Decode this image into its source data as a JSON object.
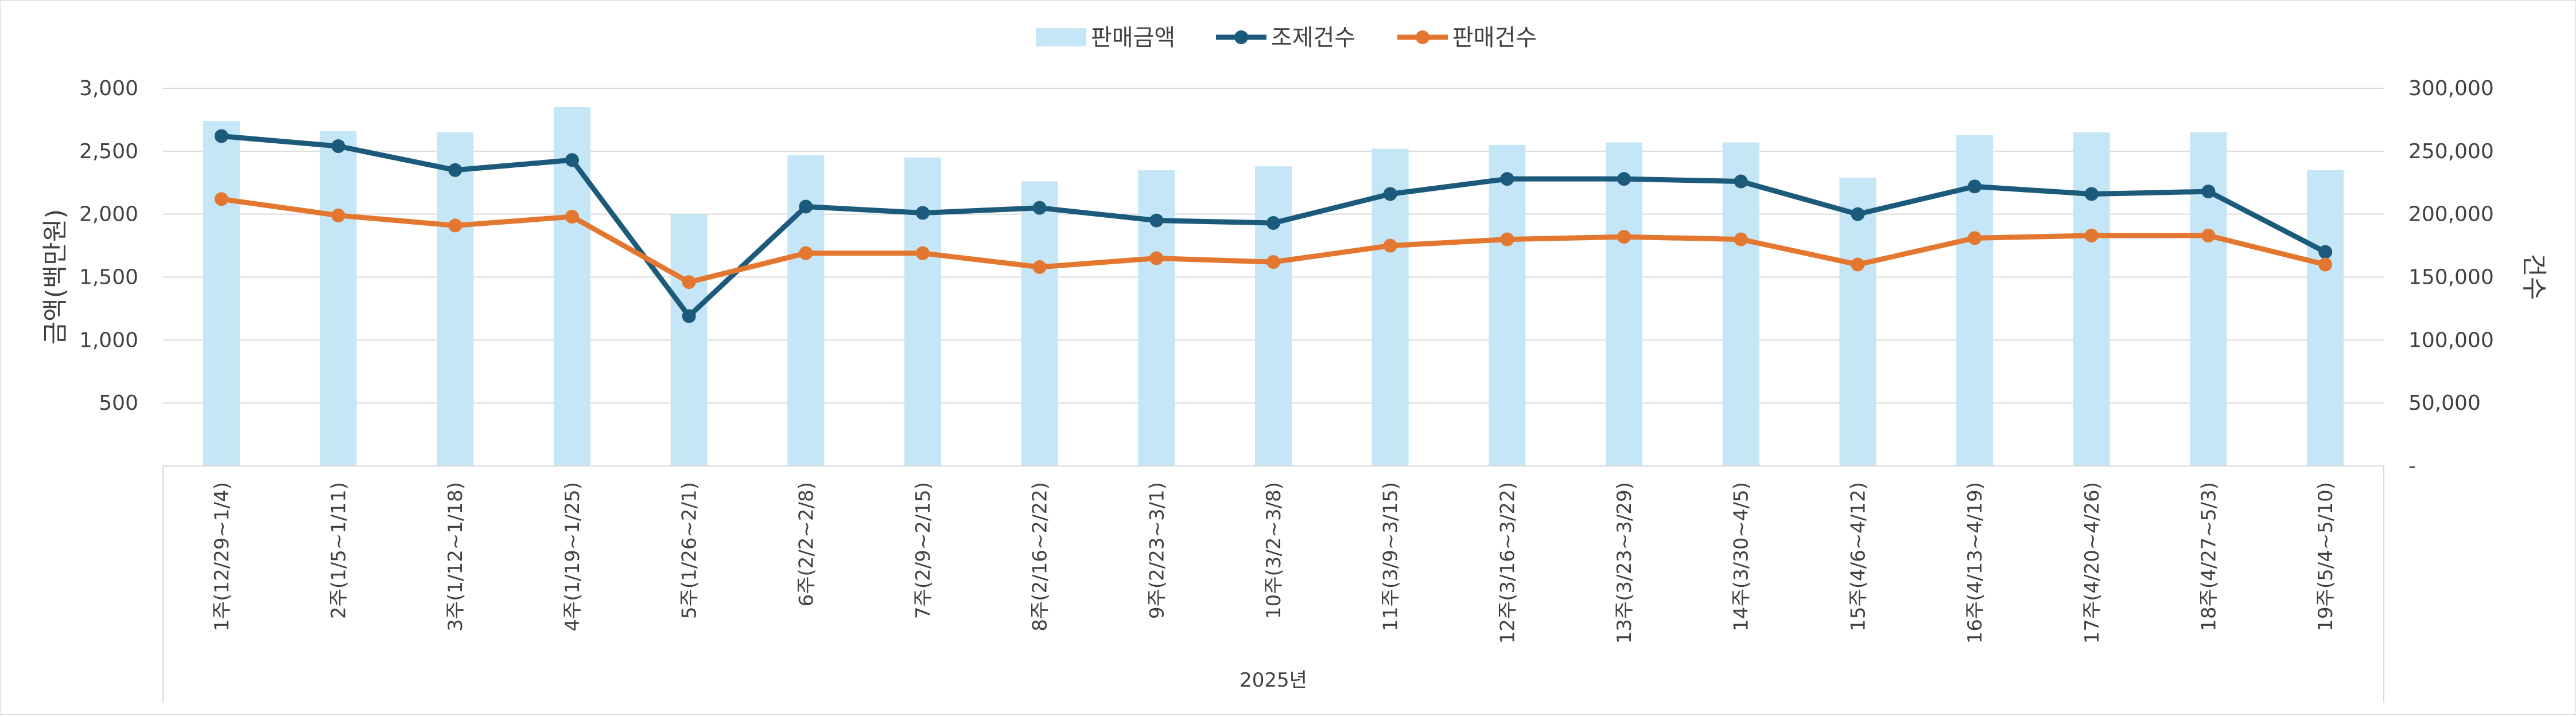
{
  "chart_data": {
    "type": "bar",
    "title": "",
    "legend": {
      "position": "top",
      "items": [
        {
          "label": "판매금액",
          "kind": "bar",
          "color": "#c5e6f6"
        },
        {
          "label": "조제건수",
          "kind": "line",
          "color": "#1b5a7a"
        },
        {
          "label": "판매건수",
          "kind": "line",
          "color": "#e4772f"
        }
      ]
    },
    "y_left": {
      "label": "금액(백만원)",
      "ylim": [
        0,
        3000
      ],
      "ticks": [
        "500",
        "1,000",
        "1,500",
        "2,000",
        "2,500",
        "3,000"
      ],
      "tick_values": [
        500,
        1000,
        1500,
        2000,
        2500,
        3000
      ]
    },
    "y_right": {
      "label": "건수",
      "ylim": [
        0,
        300000
      ],
      "ticks": [
        "-",
        "50,000",
        "100,000",
        "150,000",
        "200,000",
        "250,000",
        "300,000"
      ],
      "tick_values": [
        0,
        50000,
        100000,
        150000,
        200000,
        250000,
        300000
      ]
    },
    "x_group_label": "2025년",
    "grid": true,
    "categories": [
      "1주(12/29~1/4)",
      "2주(1/5~1/11)",
      "3주(1/12~1/18)",
      "4주(1/19~1/25)",
      "5주(1/26~2/1)",
      "6주(2/2~2/8)",
      "7주(2/9~2/15)",
      "8주(2/16~2/22)",
      "9주(2/23~3/1)",
      "10주(3/2~3/8)",
      "11주(3/9~3/15)",
      "12주(3/16~3/22)",
      "13주(3/23~3/29)",
      "14주(3/30~4/5)",
      "15주(4/6~4/12)",
      "16주(4/13~4/19)",
      "17주(4/20~4/26)",
      "18주(4/27~5/3)",
      "19주(5/4~5/10)"
    ],
    "series": [
      {
        "name": "판매금액",
        "type": "bar",
        "axis": "left",
        "color": "#c5e6f6",
        "values": [
          2740,
          2660,
          2650,
          2850,
          2000,
          2470,
          2450,
          2260,
          2350,
          2380,
          2520,
          2550,
          2570,
          2570,
          2290,
          2630,
          2650,
          2650,
          2350
        ]
      },
      {
        "name": "조제건수",
        "type": "line",
        "axis": "right",
        "color": "#1b5a7a",
        "values": [
          262000,
          254000,
          235000,
          243000,
          119000,
          206000,
          201000,
          205000,
          195000,
          193000,
          216000,
          228000,
          228000,
          226000,
          200000,
          222000,
          216000,
          218000,
          170000
        ]
      },
      {
        "name": "판매건수",
        "type": "line",
        "axis": "right",
        "color": "#e4772f",
        "values": [
          212000,
          199000,
          191000,
          198000,
          146000,
          169000,
          169000,
          158000,
          165000,
          162000,
          175000,
          180000,
          182000,
          180000,
          160000,
          181000,
          183000,
          183000,
          160000
        ]
      }
    ]
  }
}
